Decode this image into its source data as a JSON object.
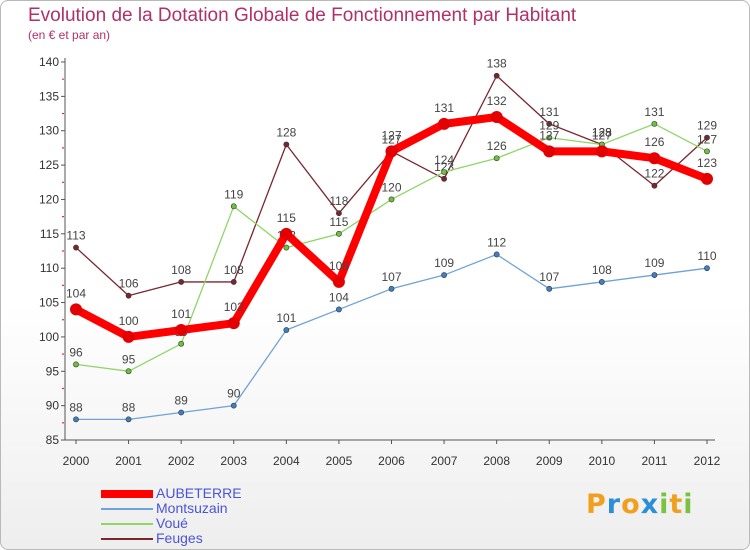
{
  "header": {
    "title": "Evolution de la Dotation Globale de Fonctionnement par Habitant",
    "subtitle": "(en € et par an)"
  },
  "logo": {
    "text": "Proxiti",
    "letters": [
      {
        "char": "P",
        "color": "#f0a01e"
      },
      {
        "char": "r",
        "color": "#2a8fd6"
      },
      {
        "char": "o",
        "color": "#f0a01e"
      },
      {
        "char": "x",
        "color": "#2a8fd6"
      },
      {
        "char": "i",
        "color": "#7cc242"
      },
      {
        "char": "t",
        "color": "#f0a01e"
      },
      {
        "char": "i",
        "color": "#7cc242"
      }
    ]
  },
  "chart_data": {
    "type": "line",
    "x": [
      "2000",
      "2001",
      "2002",
      "2003",
      "2004",
      "2005",
      "2006",
      "2007",
      "2008",
      "2009",
      "2010",
      "2011",
      "2012"
    ],
    "yticks": [
      85,
      90,
      95,
      100,
      105,
      110,
      115,
      120,
      125,
      130,
      135,
      140
    ],
    "ylim": [
      85,
      140
    ],
    "grid": false,
    "legend_position": "bottom-left",
    "series": [
      {
        "name": "Feuges",
        "color": "#7a2630",
        "marker_color": "#7a2630",
        "width": 1.3,
        "marker_r": 2.6,
        "values": [
          113,
          106,
          108,
          108,
          128,
          118,
          127,
          123,
          138,
          131,
          128,
          122,
          129
        ],
        "labels": [
          "113",
          "106",
          "108",
          "108",
          "128",
          "118",
          "127",
          "123",
          "138",
          "131",
          "128",
          "122",
          "129"
        ]
      },
      {
        "name": "Voué",
        "color": "#8fd667",
        "marker_color": "#6cc23a",
        "width": 1.3,
        "marker_r": 2.6,
        "values": [
          96,
          95,
          99,
          119,
          113,
          115,
          120,
          124,
          126,
          129,
          128,
          131,
          127
        ],
        "labels": [
          "96",
          "95",
          "99",
          "119",
          "113",
          "115",
          "120",
          "124",
          "126",
          "129",
          "128",
          "131",
          "127"
        ]
      },
      {
        "name": "Montsuzain",
        "color": "#6ea3d4",
        "marker_color": "#3f80c5",
        "width": 1.3,
        "marker_r": 2.6,
        "values": [
          88,
          88,
          89,
          90,
          101,
          104,
          107,
          109,
          112,
          107,
          108,
          109,
          110
        ],
        "labels": [
          "88",
          "88",
          "89",
          "90",
          "101",
          "104",
          "107",
          "109",
          "112",
          "107",
          "108",
          "109",
          "110"
        ]
      },
      {
        "name": "AUBETERRE",
        "color": "#ff0000",
        "marker_color": "#e20000",
        "width": 8,
        "marker_r": 6,
        "values": [
          104,
          100,
          101,
          102,
          115,
          108,
          127,
          131,
          132,
          127,
          127,
          126,
          123
        ],
        "labels": [
          "104",
          "100",
          "101",
          "102",
          "115",
          "108",
          "127",
          "131",
          "132",
          "127",
          "127",
          "126",
          "123"
        ]
      }
    ]
  },
  "legend": {
    "items": [
      {
        "label": "AUBETERRE",
        "color": "#ff0000",
        "thickness": 8
      },
      {
        "label": "Montsuzain",
        "color": "#6ea3d4",
        "thickness": 2
      },
      {
        "label": "Voué",
        "color": "#8fd667",
        "thickness": 2
      },
      {
        "label": "Feuges",
        "color": "#7a2630",
        "thickness": 2
      }
    ]
  }
}
